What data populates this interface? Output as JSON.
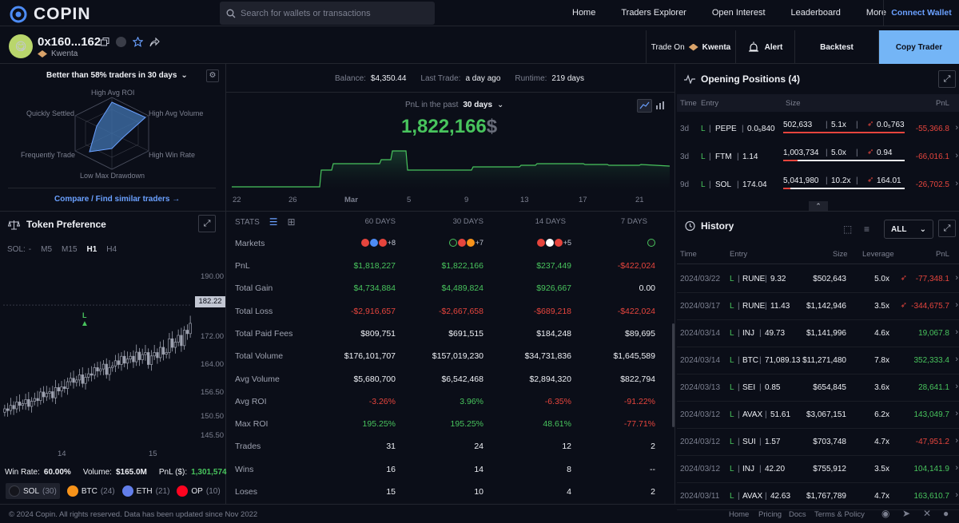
{
  "brand": {
    "name": "COPIN"
  },
  "search": {
    "placeholder": "Search for wallets or transactions"
  },
  "nav": {
    "home": "Home",
    "traders_explorer": "Traders Explorer",
    "open_interest": "Open Interest",
    "leaderboard": "Leaderboard",
    "more": "More",
    "connect": "Connect Wallet"
  },
  "trader": {
    "address": "0x160...162",
    "protocol": "Kwenta",
    "trade_on_label": "Trade On",
    "trade_on_protocol": "Kwenta",
    "alert": "Alert",
    "backtest": "Backtest",
    "copy_trader": "Copy Trader"
  },
  "radar": {
    "title": "Better than 58% traders in 30 days",
    "labels": {
      "high_avg_roi": "High Avg ROI",
      "high_avg_volume": "High Avg Volume",
      "high_win_rate": "High Win Rate",
      "low_max_drawdown": "Low Max Drawdown",
      "frequently_trade": "Frequently Trade",
      "quickly_settled": "Quickly Settled"
    },
    "compare_link": "Compare / Find similar traders →"
  },
  "summary": {
    "balance_label": "Balance:",
    "balance": "$4,350.44",
    "last_trade_label": "Last Trade:",
    "last_trade": "a day ago",
    "runtime_label": "Runtime:",
    "runtime": "219 days"
  },
  "pnl": {
    "label": "PnL in the past",
    "period": "30 days",
    "value": "1,822,166",
    "currency": "$",
    "x_ticks": [
      "22",
      "26",
      "Mar",
      "5",
      "9",
      "13",
      "17",
      "21"
    ]
  },
  "token_pref": {
    "title": "Token Preference",
    "symbol": "SOL:",
    "dash": "-",
    "intervals": [
      "M5",
      "M15",
      "H1",
      "H4"
    ],
    "active_interval": "H1",
    "y_ticks": [
      "190.00",
      "182.22",
      "172.00",
      "164.00",
      "156.50",
      "150.50",
      "145.50"
    ],
    "current_price": "182.22",
    "marker": "L",
    "x_ticks": [
      "14",
      "15"
    ],
    "win_rate_label": "Win Rate:",
    "win_rate": "60.00%",
    "volume_label": "Volume:",
    "volume": "$165.0M",
    "pnl_label": "PnL ($):",
    "pnl": "1,301,574"
  },
  "tokens": [
    {
      "name": "SOL",
      "count": "(30)"
    },
    {
      "name": "BTC",
      "count": "(24)"
    },
    {
      "name": "ETH",
      "count": "(21)"
    },
    {
      "name": "OP",
      "count": "(10)"
    }
  ],
  "stats": {
    "title": "STATS",
    "columns": [
      "60 DAYS",
      "30 DAYS",
      "14 DAYS",
      "7 DAYS"
    ],
    "markets_label": "Markets",
    "markets_extra": [
      "+8",
      "+7",
      "+5",
      ""
    ],
    "rows": [
      {
        "label": "PnL",
        "values": [
          "$1,818,227",
          "$1,822,166",
          "$237,449",
          "-$422,024"
        ]
      },
      {
        "label": "Total Gain",
        "values": [
          "$4,734,884",
          "$4,489,824",
          "$926,667",
          "0.00"
        ]
      },
      {
        "label": "Total Loss",
        "values": [
          "-$2,916,657",
          "-$2,667,658",
          "-$689,218",
          "-$422,024"
        ]
      },
      {
        "label": "Total Paid Fees",
        "values": [
          "$809,751",
          "$691,515",
          "$184,248",
          "$89,695"
        ]
      },
      {
        "label": "Total Volume",
        "values": [
          "$176,101,707",
          "$157,019,230",
          "$34,731,836",
          "$1,645,589"
        ]
      },
      {
        "label": "Avg Volume",
        "values": [
          "$5,680,700",
          "$6,542,468",
          "$2,894,320",
          "$822,794"
        ]
      },
      {
        "label": "Avg ROI",
        "values": [
          "-3.26%",
          "3.96%",
          "-6.35%",
          "-91.22%"
        ]
      },
      {
        "label": "Max ROI",
        "values": [
          "195.25%",
          "195.25%",
          "48.61%",
          "-77.71%"
        ]
      },
      {
        "label": "Trades",
        "values": [
          "31",
          "24",
          "12",
          "2"
        ]
      },
      {
        "label": "Wins",
        "values": [
          "16",
          "14",
          "8",
          "--"
        ]
      },
      {
        "label": "Loses",
        "values": [
          "15",
          "10",
          "4",
          "2"
        ]
      }
    ]
  },
  "opening": {
    "title": "Opening Positions (4)",
    "headers": {
      "time": "Time",
      "entry": "Entry",
      "size": "Size",
      "pnl": "PnL"
    },
    "rows": [
      {
        "time": "3d",
        "side": "L",
        "token": "PEPE",
        "entry": "0.0₅840",
        "size": "502,633",
        "lev": "5.1x",
        "liq": "0.0₅763",
        "pnl": "-55,366.8"
      },
      {
        "time": "3d",
        "side": "L",
        "token": "FTM",
        "entry": "1.14",
        "size": "1,003,734",
        "lev": "5.0x",
        "liq": "0.94",
        "pnl": "-66,016.1"
      },
      {
        "time": "9d",
        "side": "L",
        "token": "SOL",
        "entry": "174.04",
        "size": "5,041,980",
        "lev": "10.2x",
        "liq": "164.01",
        "pnl": "-26,702.5"
      }
    ]
  },
  "history": {
    "title": "History",
    "filter": "ALL",
    "headers": {
      "time": "Time",
      "entry": "Entry",
      "size": "Size",
      "leverage": "Leverage",
      "pnl": "PnL"
    },
    "rows": [
      {
        "date": "2024/03/22",
        "side": "L",
        "token": "RUNE",
        "entry": "9.32",
        "size": "$502,643",
        "lev": "5.0x",
        "pnl": "-77,348.1",
        "liq": true
      },
      {
        "date": "2024/03/17",
        "side": "L",
        "token": "RUNE",
        "entry": "11.43",
        "size": "$1,142,946",
        "lev": "3.5x",
        "pnl": "-344,675.7",
        "liq": true
      },
      {
        "date": "2024/03/14",
        "side": "L",
        "token": "INJ",
        "entry": "49.73",
        "size": "$1,141,996",
        "lev": "4.6x",
        "pnl": "19,067.8",
        "liq": false
      },
      {
        "date": "2024/03/14",
        "side": "L",
        "token": "BTC",
        "entry": "71,089.13",
        "size": "$11,271,480",
        "lev": "7.8x",
        "pnl": "352,333.4",
        "liq": false
      },
      {
        "date": "2024/03/13",
        "side": "L",
        "token": "SEI",
        "entry": "0.85",
        "size": "$654,845",
        "lev": "3.6x",
        "pnl": "28,641.1",
        "liq": false
      },
      {
        "date": "2024/03/12",
        "side": "L",
        "token": "AVAX",
        "entry": "51.61",
        "size": "$3,067,151",
        "lev": "6.2x",
        "pnl": "143,049.7",
        "liq": false
      },
      {
        "date": "2024/03/12",
        "side": "L",
        "token": "SUI",
        "entry": "1.57",
        "size": "$703,748",
        "lev": "4.7x",
        "pnl": "-47,951.2",
        "liq": false
      },
      {
        "date": "2024/03/12",
        "side": "L",
        "token": "INJ",
        "entry": "42.20",
        "size": "$755,912",
        "lev": "3.5x",
        "pnl": "104,141.9",
        "liq": false
      },
      {
        "date": "2024/03/11",
        "side": "L",
        "token": "AVAX",
        "entry": "42.63",
        "size": "$1,767,789",
        "lev": "4.7x",
        "pnl": "163,610.7",
        "liq": false
      }
    ]
  },
  "footer": {
    "copyright": "© 2024 Copin. All rights reserved. Data has been updated since Nov 2022",
    "links": [
      "Home",
      "Pricing",
      "Docs",
      "Terms & Policy"
    ]
  }
}
